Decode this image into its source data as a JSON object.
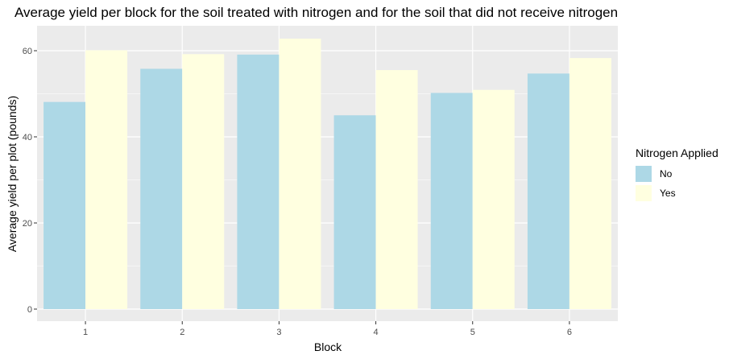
{
  "chart_data": {
    "type": "bar",
    "title": "Average yield per block for the soil treated with nitrogen and for the soil that did not receive nitrogen",
    "xlabel": "Block",
    "ylabel": "Average yield per plot (pounds)",
    "categories": [
      "1",
      "2",
      "3",
      "4",
      "5",
      "6"
    ],
    "series": [
      {
        "name": "No",
        "color": "#add8e6",
        "values": [
          48.1,
          55.8,
          59.1,
          45.0,
          50.2,
          54.7
        ]
      },
      {
        "name": "Yes",
        "color": "#ffffe0",
        "values": [
          60.1,
          59.2,
          62.8,
          55.5,
          50.9,
          58.3
        ]
      }
    ],
    "yticks": [
      "0",
      "20",
      "40",
      "60"
    ],
    "ylim": [
      0,
      65
    ],
    "legend": {
      "title": "Nitrogen Applied",
      "position": "right"
    },
    "panel_color": "#ebebeb",
    "grid": true
  }
}
